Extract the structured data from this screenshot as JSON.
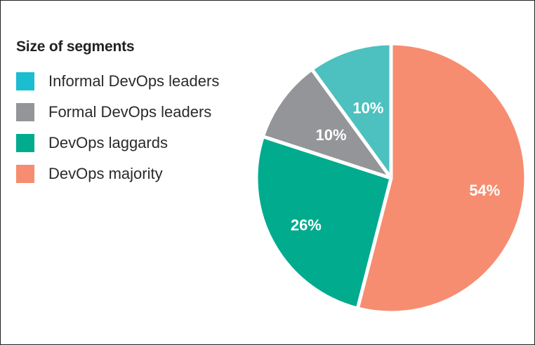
{
  "chart_data": {
    "type": "pie",
    "title": "Size of segments",
    "categories": [
      "Informal DevOps leaders",
      "Formal DevOps leaders",
      "DevOps laggards",
      "DevOps majority"
    ],
    "values": [
      10,
      10,
      26,
      54
    ],
    "value_labels": [
      "10%",
      "10%",
      "26%",
      "54%"
    ],
    "colors": [
      "#4cc1bf",
      "#949598",
      "#00ab8e",
      "#f68d70"
    ],
    "legend_colors": [
      "#1bbdd1",
      "#949598",
      "#00ab8e",
      "#f68d70"
    ],
    "legend_position": "left"
  }
}
